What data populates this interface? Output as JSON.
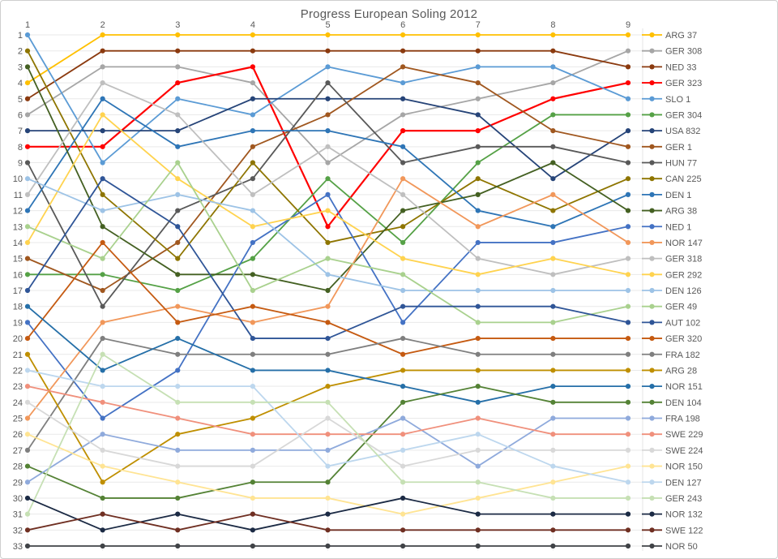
{
  "chart_data": {
    "type": "line",
    "title": "Progress European Soling 2012",
    "xlabel": "",
    "ylabel": "",
    "x": [
      1,
      2,
      3,
      4,
      5,
      6,
      7,
      8,
      9
    ],
    "x_tick_labels": [
      "1",
      "2",
      "3",
      "4",
      "5",
      "6",
      "7",
      "8",
      "9"
    ],
    "x_axis_position": "top",
    "y_tick_labels": [
      "1",
      "2",
      "3",
      "4",
      "5",
      "6",
      "7",
      "8",
      "9",
      "10",
      "11",
      "12",
      "13",
      "14",
      "15",
      "16",
      "17",
      "18",
      "19",
      "20",
      "21",
      "22",
      "23",
      "24",
      "25",
      "26",
      "27",
      "28",
      "29",
      "30",
      "31",
      "32",
      "33"
    ],
    "y_axis": {
      "min": 1,
      "max": 33,
      "inverted": true,
      "meaning": "rank position per race"
    },
    "grid": true,
    "legend_position": "right",
    "axis_text_color": "#595959",
    "gridline_color": "#e9e9e9",
    "series": [
      {
        "name": "ARG 37",
        "color": "#FFC000",
        "values": [
          4,
          1,
          1,
          1,
          1,
          1,
          1,
          1,
          1
        ]
      },
      {
        "name": "GER 308",
        "color": "#A6A6A6",
        "values": [
          6,
          3,
          3,
          4,
          9,
          6,
          5,
          4,
          2
        ]
      },
      {
        "name": "NED 33",
        "color": "#8B3A0F",
        "values": [
          5,
          2,
          2,
          2,
          2,
          2,
          2,
          2,
          3
        ]
      },
      {
        "name": "GER 323",
        "color": "#FF0000",
        "values": [
          8,
          8,
          4,
          3,
          13,
          7,
          7,
          5,
          4
        ]
      },
      {
        "name": "SLO 1",
        "color": "#5B9BD5",
        "values": [
          1,
          9,
          5,
          6,
          3,
          4,
          3,
          3,
          5
        ]
      },
      {
        "name": "GER 304",
        "color": "#55A146",
        "values": [
          16,
          16,
          17,
          15,
          10,
          14,
          9,
          6,
          6
        ]
      },
      {
        "name": "USA 832",
        "color": "#264478",
        "values": [
          7,
          7,
          7,
          5,
          5,
          5,
          6,
          10,
          7
        ]
      },
      {
        "name": "GER 1",
        "color": "#A0571F",
        "values": [
          15,
          17,
          14,
          8,
          6,
          3,
          4,
          7,
          8
        ]
      },
      {
        "name": "HUN 77",
        "color": "#595959",
        "values": [
          9,
          18,
          12,
          10,
          4,
          9,
          8,
          8,
          9
        ]
      },
      {
        "name": "CAN 225",
        "color": "#8E7500",
        "values": [
          2,
          11,
          15,
          9,
          14,
          13,
          10,
          12,
          10
        ]
      },
      {
        "name": "DEN 1",
        "color": "#2E75B6",
        "values": [
          12,
          5,
          8,
          7,
          7,
          8,
          12,
          13,
          11
        ]
      },
      {
        "name": "ARG 38",
        "color": "#446022",
        "values": [
          3,
          13,
          16,
          16,
          17,
          12,
          11,
          9,
          12
        ]
      },
      {
        "name": "NED 1",
        "color": "#4472C4",
        "values": [
          19,
          25,
          22,
          14,
          11,
          19,
          14,
          14,
          13
        ]
      },
      {
        "name": "NOR 147",
        "color": "#F1975A",
        "values": [
          25,
          19,
          18,
          19,
          18,
          10,
          13,
          11,
          14
        ]
      },
      {
        "name": "GER 318",
        "color": "#BFBFBF",
        "values": [
          11,
          4,
          6,
          11,
          8,
          11,
          15,
          16,
          15
        ]
      },
      {
        "name": "GER 292",
        "color": "#FFD34F",
        "values": [
          14,
          6,
          10,
          13,
          12,
          15,
          16,
          15,
          16
        ]
      },
      {
        "name": "DEN 126",
        "color": "#9DC3E6",
        "values": [
          10,
          12,
          11,
          12,
          16,
          17,
          17,
          17,
          17
        ]
      },
      {
        "name": "GER 49",
        "color": "#A9D18E",
        "values": [
          13,
          15,
          9,
          17,
          15,
          16,
          19,
          19,
          18
        ]
      },
      {
        "name": "AUT 102",
        "color": "#2F5597",
        "values": [
          17,
          10,
          13,
          20,
          20,
          18,
          18,
          18,
          19
        ]
      },
      {
        "name": "GER 320",
        "color": "#C55A11",
        "values": [
          20,
          14,
          19,
          18,
          19,
          21,
          20,
          20,
          20
        ]
      },
      {
        "name": "FRA 182",
        "color": "#7F7F7F",
        "values": [
          27,
          20,
          21,
          21,
          21,
          20,
          21,
          21,
          21
        ]
      },
      {
        "name": "ARG 28",
        "color": "#BF8F00",
        "values": [
          21,
          29,
          26,
          25,
          23,
          22,
          22,
          22,
          22
        ]
      },
      {
        "name": "NOR 151",
        "color": "#256FA8",
        "values": [
          18,
          22,
          20,
          22,
          22,
          23,
          24,
          23,
          23
        ]
      },
      {
        "name": "DEN 104",
        "color": "#548235",
        "values": [
          28,
          30,
          30,
          29,
          29,
          24,
          23,
          24,
          24
        ]
      },
      {
        "name": "FRA 198",
        "color": "#8FAADC",
        "values": [
          29,
          26,
          27,
          27,
          27,
          25,
          28,
          25,
          25
        ]
      },
      {
        "name": "SWE 229",
        "color": "#F0907C",
        "values": [
          23,
          24,
          25,
          26,
          26,
          26,
          25,
          26,
          26
        ]
      },
      {
        "name": "SWE 224",
        "color": "#D8D8D8",
        "values": [
          24,
          27,
          28,
          28,
          25,
          28,
          27,
          27,
          27
        ]
      },
      {
        "name": "NOR 150",
        "color": "#FFE493",
        "values": [
          26,
          28,
          29,
          30,
          30,
          31,
          30,
          29,
          28
        ]
      },
      {
        "name": "DEN 127",
        "color": "#BDD7EE",
        "values": [
          22,
          23,
          23,
          23,
          28,
          27,
          26,
          28,
          29
        ]
      },
      {
        "name": "GER 243",
        "color": "#C6E0B4",
        "values": [
          31,
          21,
          24,
          24,
          24,
          29,
          29,
          30,
          30
        ]
      },
      {
        "name": "NOR 132",
        "color": "#1B2A44",
        "values": [
          30,
          32,
          31,
          32,
          31,
          30,
          31,
          31,
          31
        ]
      },
      {
        "name": "SWE 122",
        "color": "#6F2F22",
        "values": [
          32,
          31,
          32,
          31,
          32,
          32,
          32,
          32,
          32
        ]
      },
      {
        "name": "NOR 50",
        "color": "#404347",
        "values": [
          33,
          33,
          33,
          33,
          33,
          33,
          33,
          33,
          33
        ]
      }
    ]
  }
}
